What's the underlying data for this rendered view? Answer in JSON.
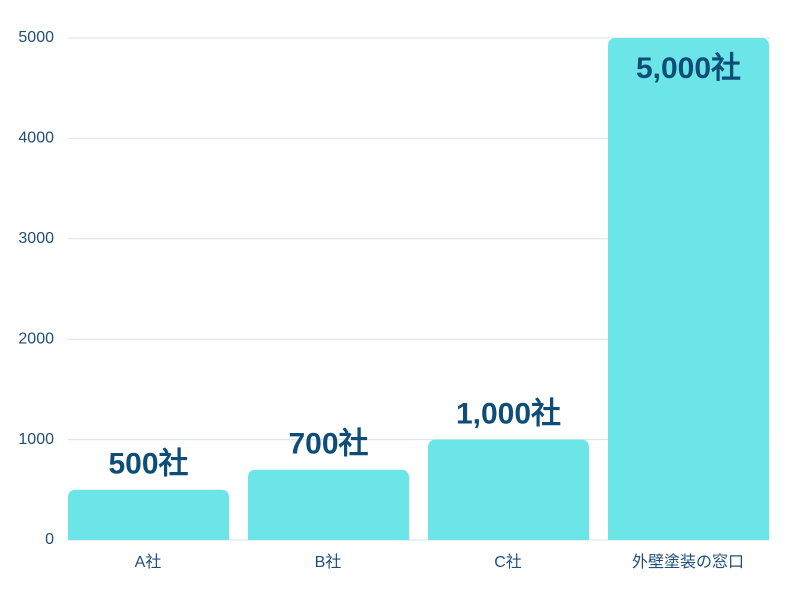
{
  "chart_data": {
    "type": "bar",
    "categories": [
      "A社",
      "B社",
      "C社",
      "外壁塗装の窓口"
    ],
    "values": [
      500,
      700,
      1000,
      5000
    ],
    "value_labels": [
      "500社",
      "700社",
      "1,000社",
      "5,000社"
    ],
    "color": "#6ce5e8",
    "ylim": [
      0,
      5000
    ],
    "yticks": [
      0,
      1000,
      2000,
      3000,
      4000,
      5000
    ],
    "grid": true
  }
}
